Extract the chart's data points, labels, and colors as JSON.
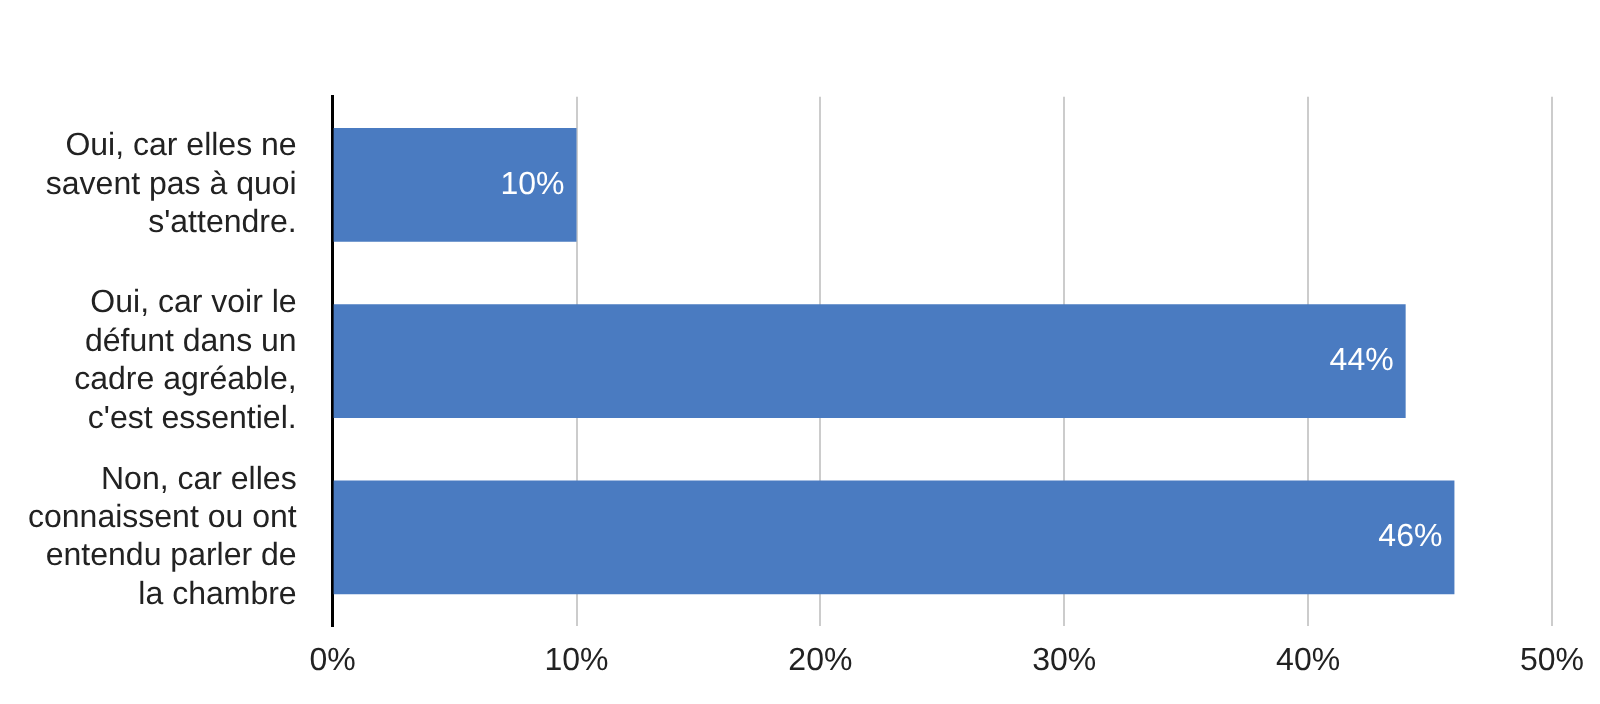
{
  "chart_data": {
    "type": "bar",
    "orientation": "horizontal",
    "categories": [
      "Oui, car elles ne savent pas à quoi s'attendre.",
      "Oui, car voir le défunt dans un cadre agréable, c'est essentiel.",
      "Non, car elles connaissent ou ont entendu parler de la chambre"
    ],
    "values": [
      10,
      44,
      46
    ],
    "color": "#4a7bc1",
    "value_labels": [
      "10%",
      "44%",
      "46%"
    ],
    "xlim": [
      0,
      50
    ],
    "xticks": [
      {
        "value": 0,
        "label": "0%"
      },
      {
        "value": 10,
        "label": "10%"
      },
      {
        "value": 20,
        "label": "20%"
      },
      {
        "value": 30,
        "label": "30%"
      },
      {
        "value": 40,
        "label": "40%"
      },
      {
        "value": 50,
        "label": "50%"
      }
    ],
    "grid": "x",
    "legend": false
  }
}
